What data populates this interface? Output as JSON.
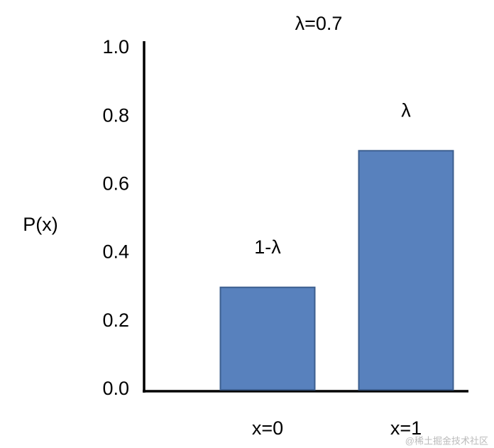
{
  "chart_data": {
    "type": "bar",
    "title": "λ=0.7",
    "y_label": "P(x)",
    "categories": [
      "x=0",
      "x=1"
    ],
    "values": [
      0.3,
      0.7
    ],
    "annotations": [
      "1-λ",
      "λ"
    ],
    "color": "#5881bd",
    "edge_color": "#3d5f8f",
    "ylim": [
      0,
      1
    ],
    "yticks": [
      {
        "value": 0,
        "label": "0.0"
      },
      0.2,
      0.4,
      0.6,
      0.8,
      {
        "value": 1,
        "label": "1.0"
      }
    ],
    "grid": false,
    "watermark": "@稀土掘金技术社区"
  }
}
